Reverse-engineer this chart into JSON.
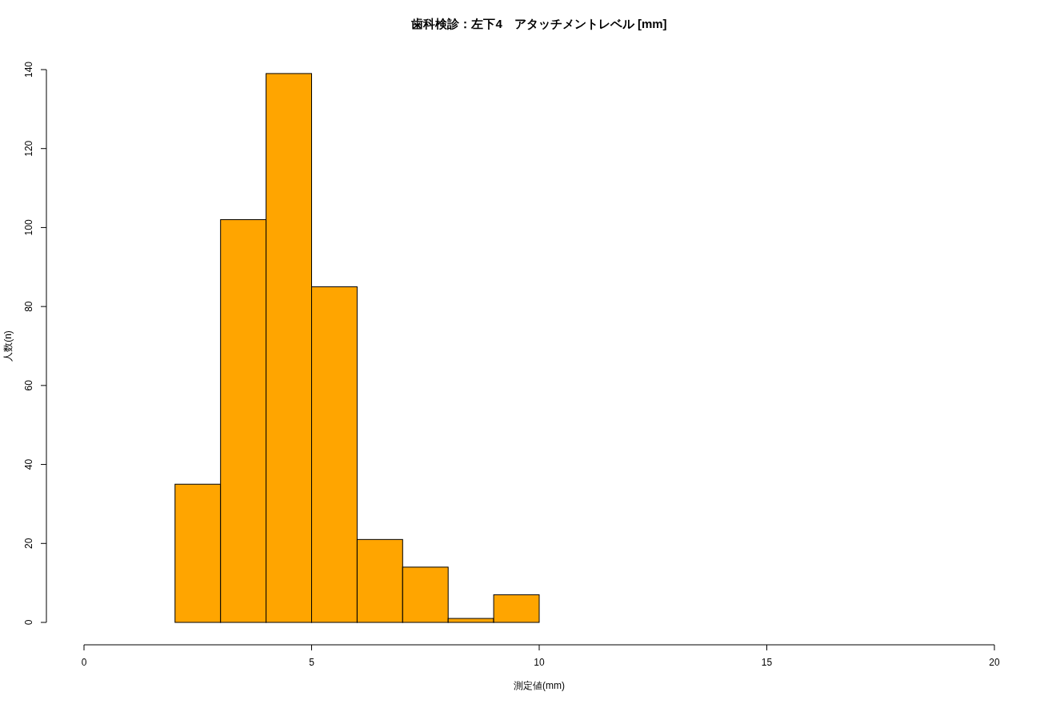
{
  "chart_data": {
    "type": "histogram",
    "title": "歯科検診：左下4　アタッチメントレベル [mm]",
    "xlabel": "測定値(mm)",
    "ylabel": "人数(n)",
    "bins": [
      2,
      3,
      4,
      5,
      6,
      7,
      8,
      9,
      10
    ],
    "values": [
      35,
      102,
      139,
      85,
      21,
      14,
      1,
      7
    ],
    "color": "#ffa500",
    "xlim": [
      0,
      20
    ],
    "xticks": [
      0,
      5,
      10,
      15,
      20
    ],
    "ylim": [
      0,
      140
    ],
    "yticks": [
      0,
      20,
      40,
      60,
      80,
      100,
      120,
      140
    ],
    "grid": false,
    "legend": false
  }
}
